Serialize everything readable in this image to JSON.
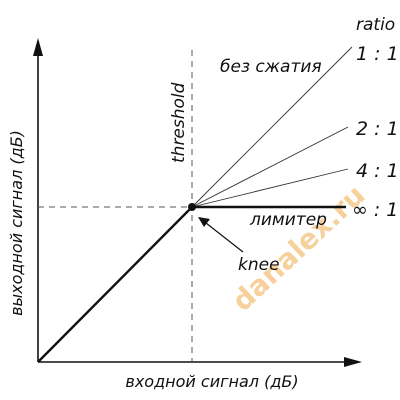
{
  "labels": {
    "ratio_heading": "ratio",
    "no_compression": "без сжатия",
    "threshold": "threshold",
    "limiter": "лимитер",
    "knee": "knee",
    "y_axis": "выходной сигнал (дБ)",
    "x_axis": "входной сигнал (дБ)"
  },
  "ratios": [
    {
      "label": "1 : 1"
    },
    {
      "label": "2 : 1"
    },
    {
      "label": "4 : 1"
    },
    {
      "label": "∞ : 1"
    }
  ],
  "watermark": "danalex.ru",
  "colors": {
    "line": "#111111",
    "guide": "#555555",
    "watermark": "#f4c27a"
  }
}
